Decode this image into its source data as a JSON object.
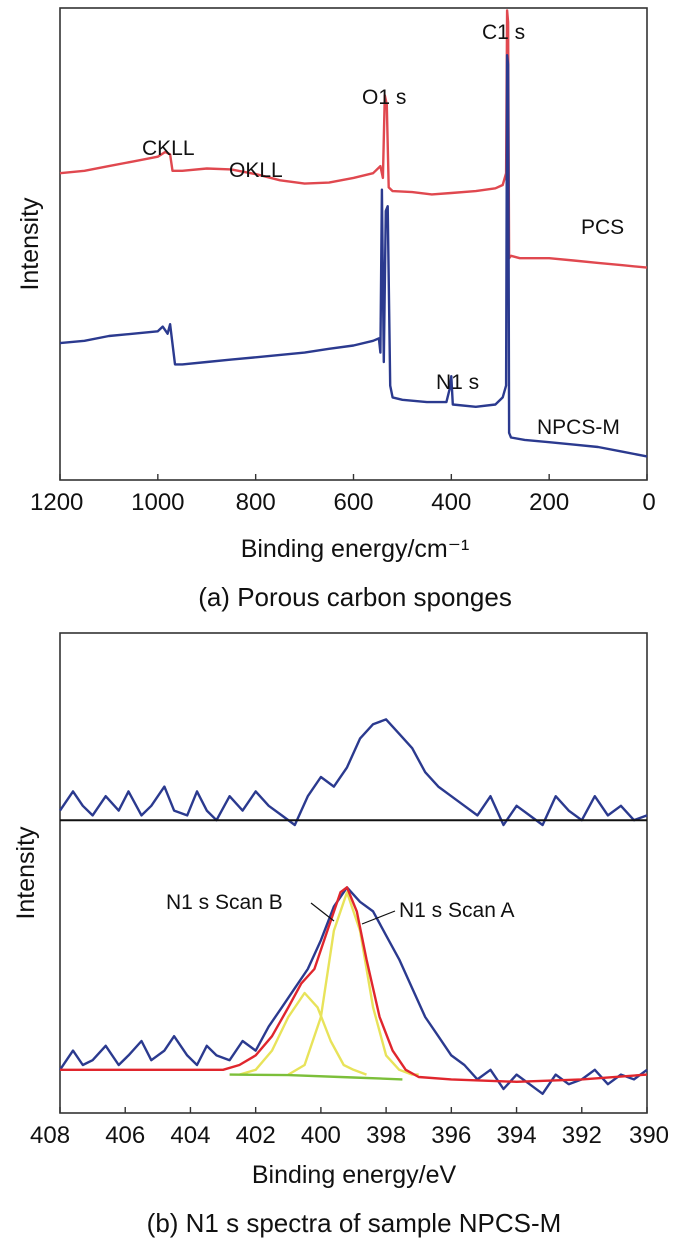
{
  "chart_data": [
    {
      "type": "line",
      "panel": "a",
      "caption": "(a) Porous carbon sponges",
      "xlabel": "Binding energy/cm⁻¹",
      "ylabel": "Intensity",
      "xlim": [
        1200,
        0
      ],
      "ylim": [
        0,
        1
      ],
      "x_inverted": true,
      "xticks": [
        1200,
        1000,
        800,
        600,
        400,
        200,
        0
      ],
      "colors": {
        "PCS": "#e0484f",
        "NPCS-M": "#2b3a8f"
      },
      "series": [
        {
          "name": "PCS",
          "x": [
            1200,
            1150,
            1100,
            1050,
            1000,
            985,
            975,
            970,
            950,
            900,
            850,
            800,
            750,
            700,
            650,
            600,
            560,
            545,
            540,
            536,
            532,
            528,
            520,
            480,
            440,
            400,
            350,
            310,
            295,
            288,
            286,
            284,
            282,
            278,
            260,
            200,
            150,
            100,
            50,
            0
          ],
          "y": [
            0.65,
            0.655,
            0.665,
            0.675,
            0.685,
            0.695,
            0.69,
            0.655,
            0.655,
            0.66,
            0.658,
            0.648,
            0.635,
            0.628,
            0.63,
            0.64,
            0.65,
            0.665,
            0.64,
            0.815,
            0.795,
            0.62,
            0.612,
            0.61,
            0.605,
            0.608,
            0.612,
            0.618,
            0.625,
            0.65,
            0.995,
            0.97,
            0.47,
            0.475,
            0.47,
            0.47,
            0.465,
            0.46,
            0.455,
            0.45
          ]
        },
        {
          "name": "NPCS-M",
          "x": [
            1200,
            1150,
            1100,
            1050,
            1000,
            990,
            980,
            975,
            965,
            950,
            900,
            850,
            800,
            750,
            700,
            650,
            600,
            560,
            548,
            545,
            542,
            538,
            534,
            530,
            525,
            520,
            500,
            450,
            410,
            403,
            400,
            397,
            350,
            310,
            295,
            288,
            286,
            284,
            282,
            278,
            250,
            200,
            150,
            100,
            50,
            0
          ],
          "y": [
            0.29,
            0.295,
            0.305,
            0.31,
            0.315,
            0.325,
            0.31,
            0.33,
            0.245,
            0.245,
            0.25,
            0.255,
            0.26,
            0.265,
            0.27,
            0.278,
            0.285,
            0.295,
            0.3,
            0.27,
            0.615,
            0.25,
            0.57,
            0.58,
            0.2,
            0.175,
            0.17,
            0.165,
            0.165,
            0.195,
            0.22,
            0.16,
            0.155,
            0.16,
            0.175,
            0.2,
            0.9,
            0.88,
            0.1,
            0.09,
            0.085,
            0.08,
            0.075,
            0.07,
            0.06,
            0.05
          ]
        }
      ],
      "annotations": [
        "CKLL",
        "OKLL",
        "O1 s",
        "C1 s",
        "PCS",
        "N1 s",
        "NPCS-M"
      ]
    },
    {
      "type": "line",
      "panel": "b",
      "caption": "(b) N1 s spectra of sample NPCS-M",
      "xlabel": "Binding energy/eV",
      "ylabel": "Intensity",
      "xlim": [
        408,
        390
      ],
      "ylim": [
        0,
        1
      ],
      "x_inverted": true,
      "xticks": [
        408,
        406,
        404,
        402,
        400,
        398,
        396,
        394,
        392,
        390
      ],
      "colors": {
        "measured": "#2b3a8f",
        "baseline": "#111111",
        "envelope": "#e0262d",
        "scan_a": "#e8e35a",
        "scan_b": "#e8e35a",
        "background": "#7cbf3a"
      },
      "series": [
        {
          "name": "Upper scan",
          "x": [
            408,
            407.6,
            407.3,
            407.0,
            406.6,
            406.2,
            405.9,
            405.5,
            405.2,
            404.8,
            404.5,
            404.1,
            403.8,
            403.5,
            403.2,
            402.8,
            402.4,
            402.0,
            401.6,
            401.2,
            400.8,
            400.4,
            400.0,
            399.6,
            399.2,
            398.8,
            398.4,
            398.0,
            397.6,
            397.2,
            396.8,
            396.4,
            396.0,
            395.6,
            395.2,
            394.8,
            394.4,
            394.0,
            393.6,
            393.2,
            392.8,
            392.4,
            392.0,
            391.6,
            391.2,
            390.8,
            390.4,
            390.0
          ],
          "y": [
            0.63,
            0.67,
            0.64,
            0.62,
            0.66,
            0.63,
            0.67,
            0.62,
            0.64,
            0.68,
            0.63,
            0.62,
            0.67,
            0.63,
            0.61,
            0.66,
            0.63,
            0.67,
            0.64,
            0.62,
            0.6,
            0.66,
            0.7,
            0.68,
            0.72,
            0.78,
            0.81,
            0.82,
            0.79,
            0.76,
            0.71,
            0.68,
            0.66,
            0.64,
            0.62,
            0.66,
            0.6,
            0.64,
            0.62,
            0.6,
            0.66,
            0.63,
            0.61,
            0.66,
            0.62,
            0.64,
            0.61,
            0.62
          ]
        },
        {
          "name": "Upper baseline",
          "x": [
            408,
            390
          ],
          "y": [
            0.61,
            0.61
          ]
        },
        {
          "name": "Lower scan",
          "x": [
            408,
            407.6,
            407.3,
            407.0,
            406.6,
            406.2,
            405.9,
            405.5,
            405.2,
            404.8,
            404.5,
            404.1,
            403.8,
            403.5,
            403.2,
            402.8,
            402.4,
            402.0,
            401.6,
            401.2,
            400.8,
            400.4,
            400.0,
            399.6,
            399.2,
            398.8,
            398.4,
            398.0,
            397.6,
            397.2,
            396.8,
            396.4,
            396.0,
            395.6,
            395.2,
            394.8,
            394.4,
            394.0,
            393.6,
            393.2,
            392.8,
            392.4,
            392.0,
            391.6,
            391.2,
            390.8,
            390.4,
            390.0
          ],
          "y": [
            0.09,
            0.13,
            0.1,
            0.11,
            0.14,
            0.1,
            0.12,
            0.15,
            0.11,
            0.13,
            0.16,
            0.12,
            0.1,
            0.14,
            0.12,
            0.11,
            0.15,
            0.13,
            0.18,
            0.22,
            0.26,
            0.3,
            0.36,
            0.43,
            0.47,
            0.44,
            0.42,
            0.37,
            0.32,
            0.26,
            0.2,
            0.16,
            0.12,
            0.1,
            0.07,
            0.09,
            0.05,
            0.08,
            0.06,
            0.04,
            0.08,
            0.06,
            0.07,
            0.09,
            0.06,
            0.08,
            0.07,
            0.09
          ]
        },
        {
          "name": "N1 s Scan A",
          "x": [
            401,
            400.5,
            400,
            399.6,
            399.2,
            398.8,
            398.4,
            398,
            397.6,
            397.2,
            397
          ],
          "y": [
            0.08,
            0.1,
            0.2,
            0.38,
            0.46,
            0.38,
            0.22,
            0.12,
            0.09,
            0.08,
            0.08
          ]
        },
        {
          "name": "N1 s Scan B",
          "x": [
            402.5,
            402,
            401.5,
            401,
            400.5,
            400.1,
            399.7,
            399.3,
            399,
            398.6
          ],
          "y": [
            0.08,
            0.09,
            0.13,
            0.2,
            0.25,
            0.22,
            0.15,
            0.1,
            0.09,
            0.08
          ]
        },
        {
          "name": "Envelope",
          "x": [
            408,
            403,
            402.5,
            402,
            401.5,
            401,
            400.6,
            400.2,
            399.8,
            399.4,
            399.2,
            398.9,
            398.6,
            398.2,
            397.8,
            397.4,
            397,
            396,
            394,
            392,
            390
          ],
          "y": [
            0.09,
            0.09,
            0.1,
            0.12,
            0.16,
            0.22,
            0.27,
            0.3,
            0.38,
            0.46,
            0.47,
            0.42,
            0.32,
            0.2,
            0.13,
            0.09,
            0.075,
            0.07,
            0.065,
            0.07,
            0.08
          ]
        },
        {
          "name": "Background",
          "x": [
            402.8,
            401,
            399,
            397.5
          ],
          "y": [
            0.08,
            0.079,
            0.074,
            0.07
          ]
        }
      ],
      "annotations": [
        "N1 s Scan B",
        "N1 s Scan A"
      ]
    }
  ]
}
